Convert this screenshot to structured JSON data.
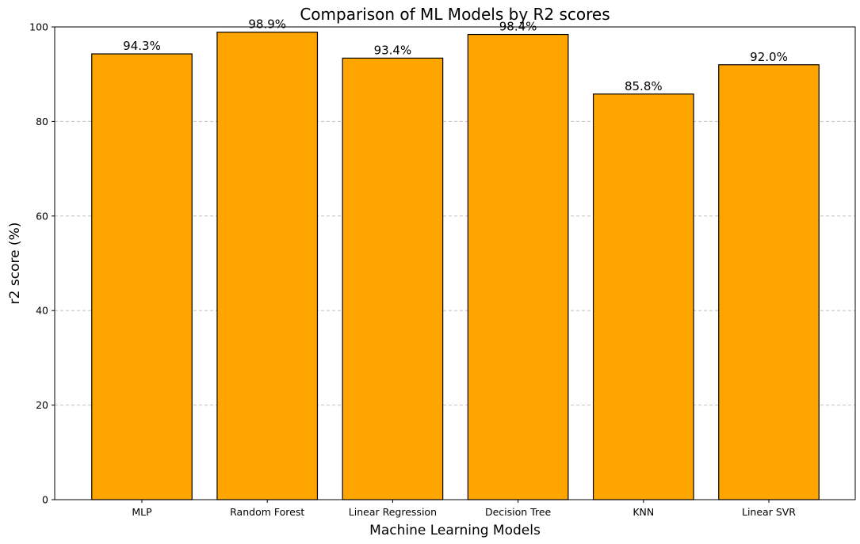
{
  "chart_data": {
    "type": "bar",
    "title": "Comparison of ML Models by R2 scores",
    "xlabel": "Machine Learning Models",
    "ylabel": "r2 score (%)",
    "categories": [
      "MLP",
      "Random Forest",
      "Linear Regression",
      "Decision Tree",
      "KNN",
      "Linear SVR"
    ],
    "values": [
      94.3,
      98.9,
      93.4,
      98.4,
      85.8,
      92.0
    ],
    "value_labels": [
      "94.3%",
      "98.9%",
      "93.4%",
      "98.4%",
      "85.8%",
      "92.0%"
    ],
    "ylim": [
      0,
      100
    ],
    "yticks": [
      0,
      20,
      40,
      60,
      80,
      100
    ],
    "ytick_labels": [
      "0",
      "20",
      "40",
      "60",
      "80",
      "100"
    ],
    "grid": "y-axis, dashed",
    "bar_color": "#FFA500",
    "edge_color": "#000000"
  }
}
